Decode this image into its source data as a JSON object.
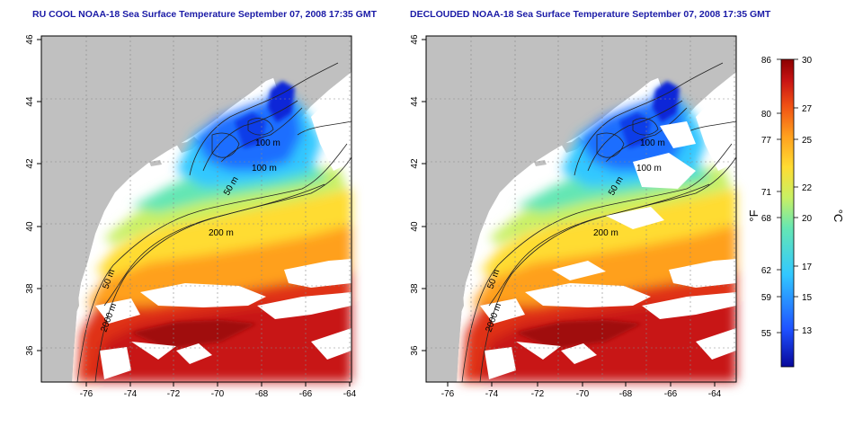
{
  "titles": {
    "left": "RU COOL NOAA-18 Sea Surface Temperature September 07, 2008 17:35 GMT",
    "right": "DECLOUDED NOAA-18 Sea Surface Temperature September 07, 2008 17:35 GMT"
  },
  "map_axes": {
    "lat_ticks": [
      "46",
      "44",
      "42",
      "40",
      "38",
      "36"
    ],
    "lon_ticks": [
      "-76",
      "-74",
      "-72",
      "-70",
      "-68",
      "-66",
      "-64"
    ]
  },
  "contour_labels": [
    "100 m",
    "100 m",
    "50 m",
    "200 m",
    "50 m",
    "2000 m"
  ],
  "colorbar": {
    "unit_f": "°F",
    "unit_c": "°C",
    "f_ticks": [
      "86",
      "80",
      "77",
      "71",
      "68",
      "62",
      "59",
      "55"
    ],
    "c_ticks": [
      "30",
      "27",
      "25",
      "22",
      "20",
      "17",
      "15",
      "13"
    ],
    "colors": [
      "#08089a",
      "#1e50ff",
      "#32c8ff",
      "#64e6b4",
      "#c8f064",
      "#ffdc32",
      "#ffa01e",
      "#f05014",
      "#c81414",
      "#8c0000"
    ]
  },
  "colors": {
    "land": "#c0c0c0",
    "title": "#1a1aa6"
  }
}
